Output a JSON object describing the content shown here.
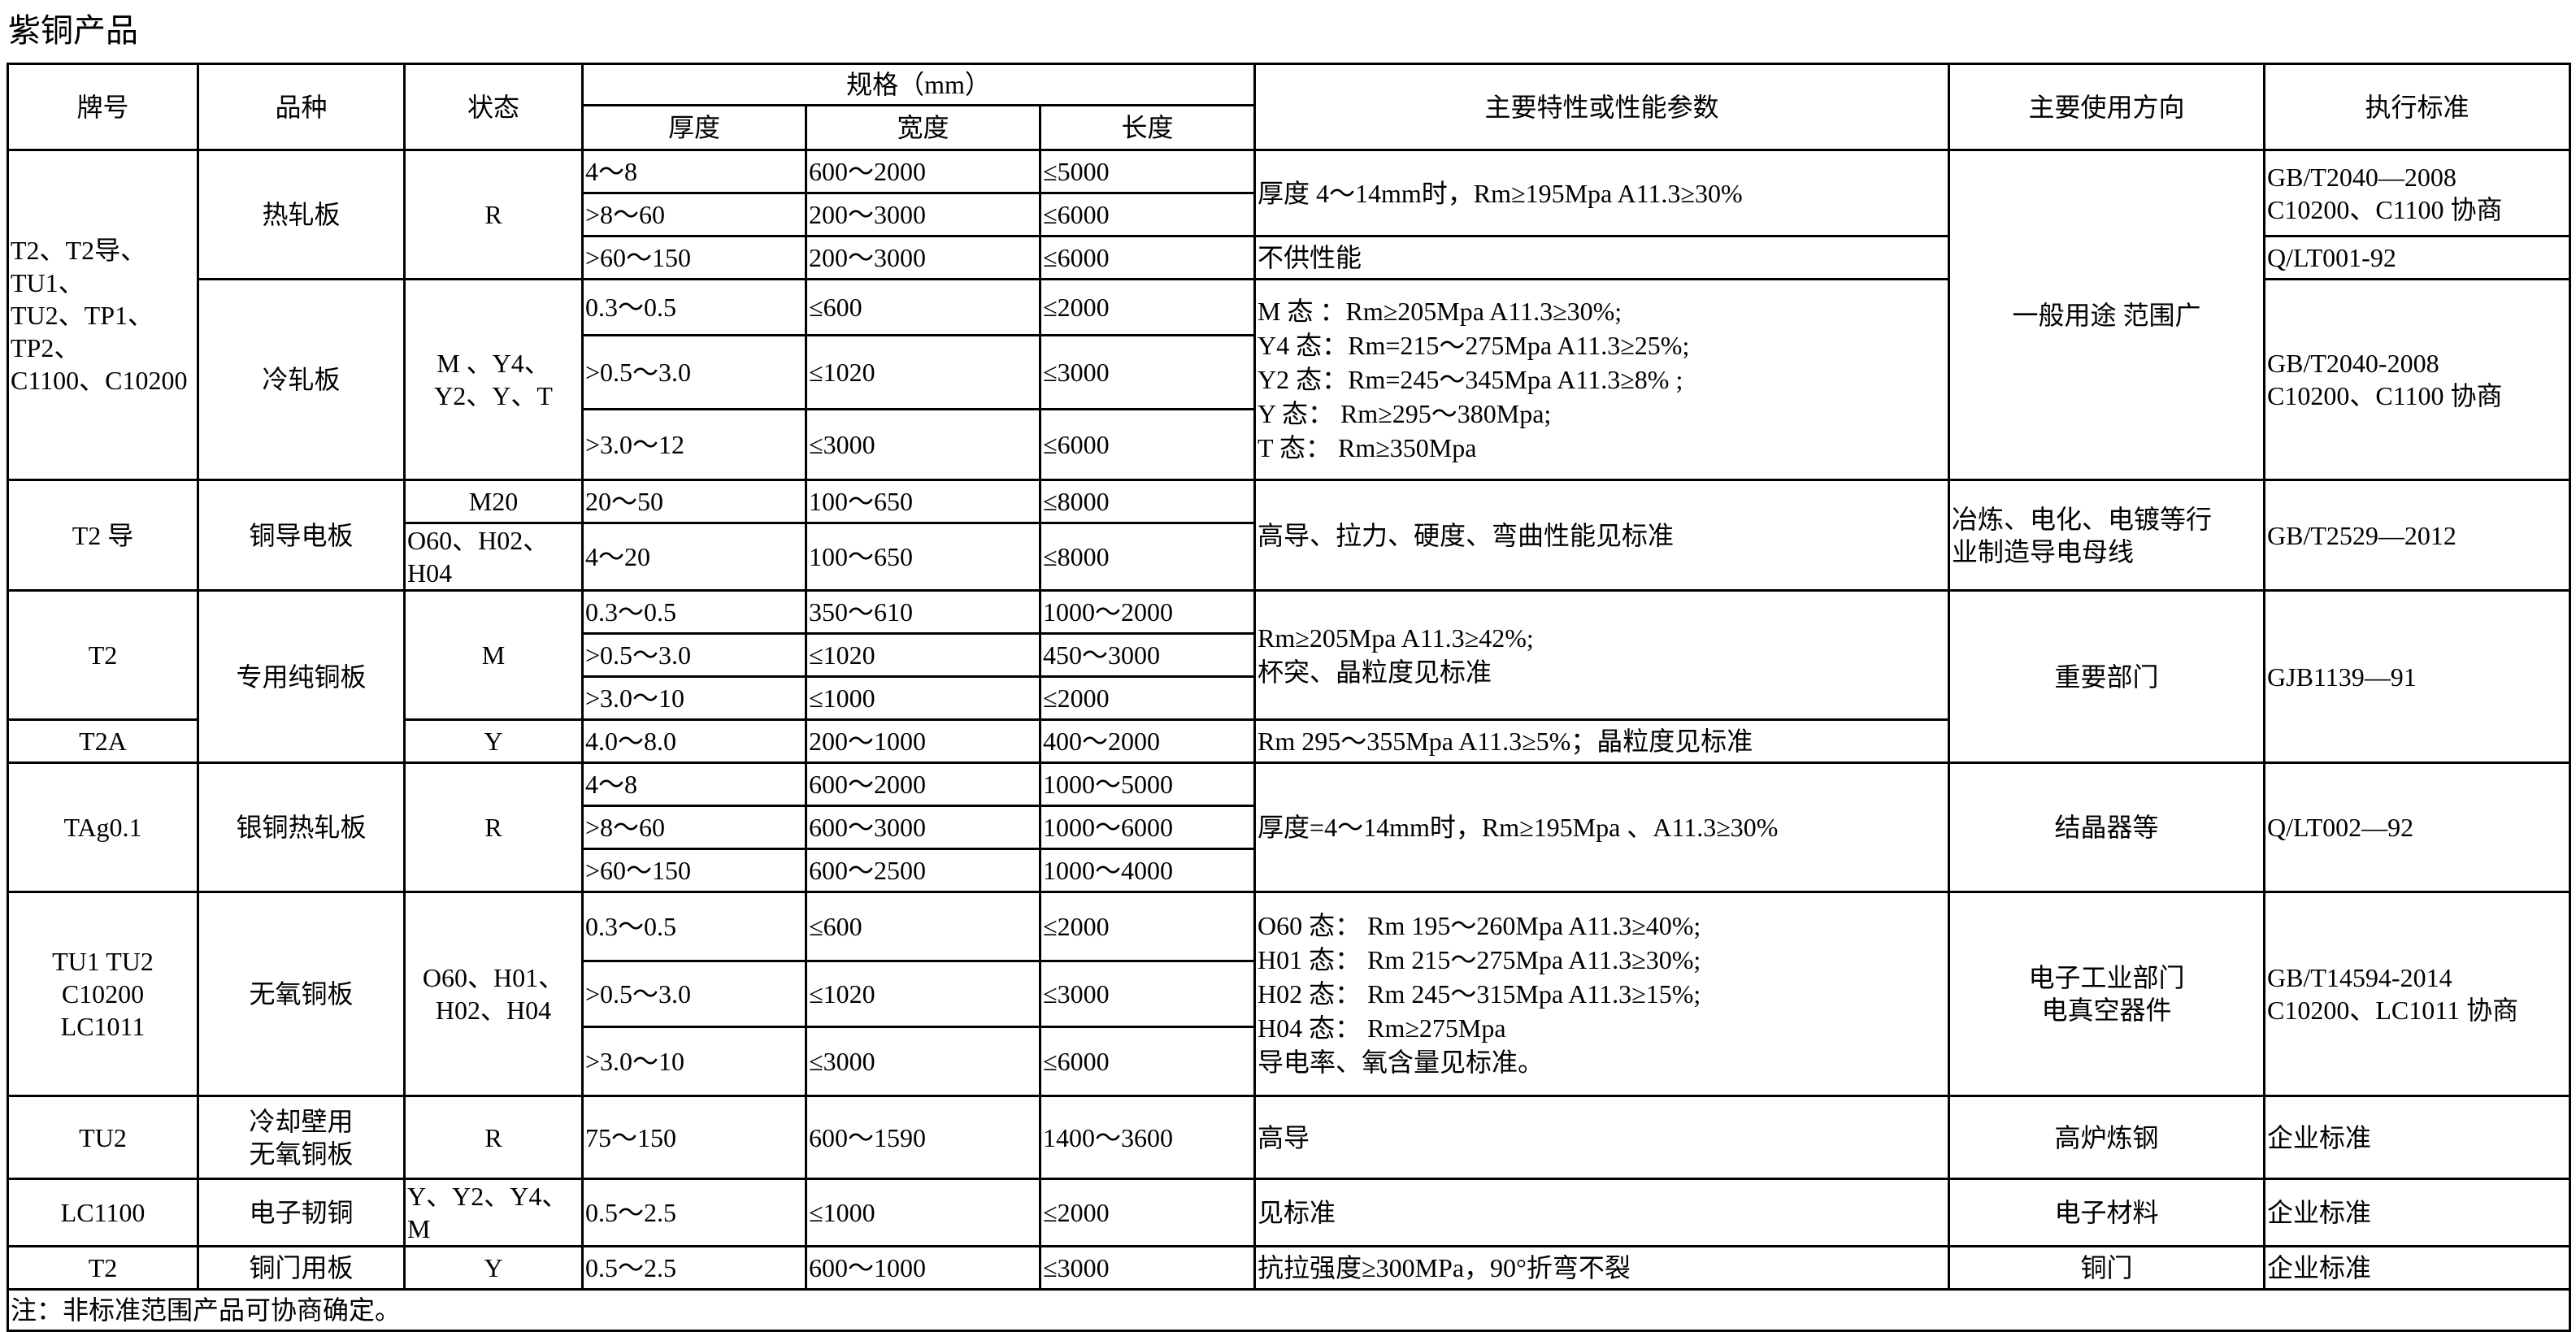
{
  "title": "紫铜产品",
  "header": {
    "grade": "牌号",
    "variety": "品种",
    "temper": "状态",
    "spec": "规格（mm）",
    "thickness": "厚度",
    "width": "宽度",
    "length": "长度",
    "properties": "主要特性或性能参数",
    "usage": "主要使用方向",
    "standard": "执行标准"
  },
  "rows": [
    [
      "T2、T2导、TU1、\nTU2、TP1、TP2、\nC1100、C10200",
      "热轧板",
      "R",
      "4～8",
      "600～2000",
      "≤5000",
      "厚度 4～14mm时，Rm≥195Mpa A11.3≥30%",
      "一般用途 范围广",
      "GB/T2040—2008\nC10200、C1100 协商"
    ],
    [
      ">8～60",
      "200～3000",
      "≤6000"
    ],
    [
      ">60～150",
      "200～3000",
      "≤6000",
      "不供性能",
      "Q/LT001-92"
    ],
    [
      "冷轧板",
      "M 、Y4、\nY2、Y、T",
      "0.3～0.5",
      "≤600",
      "≤2000",
      "M 态 ：Rm≥205Mpa   A11.3≥30%;\nY4 态：Rm=215～275Mpa A11.3≥25%;\nY2 态：Rm=245～345Mpa A11.3≥8% ;\nY 态：  Rm≥295～380Mpa;\nT 态：  Rm≥350Mpa",
      "GB/T2040-2008\nC10200、C1100 协商"
    ],
    [
      ">0.5～3.0",
      "≤1020",
      "≤3000"
    ],
    [
      ">3.0～12",
      "≤3000",
      "≤6000"
    ],
    [
      "T2 导",
      "铜导电板",
      "M20",
      "20～50",
      "100～650",
      "≤8000",
      "高导、拉力、硬度、弯曲性能见标准",
      "冶炼、电化、电镀等行\n业制造导电母线",
      "GB/T2529—2012"
    ],
    [
      "O60、H02、H04",
      "4～20",
      "100～650",
      "≤8000"
    ],
    [
      "T2",
      "专用纯铜板",
      "M",
      "0.3～0.5",
      "350～610",
      "1000～2000",
      "Rm≥205Mpa  A11.3≥42%;\n杯突、晶粒度见标准",
      "重要部门",
      "GJB1139—91"
    ],
    [
      ">0.5～3.0",
      "≤1020",
      "450～3000"
    ],
    [
      ">3.0～10",
      "≤1000",
      "≤2000"
    ],
    [
      "T2A",
      "Y",
      "4.0～8.0",
      "200～1000",
      "400～2000",
      "Rm 295～355Mpa A11.3≥5%；晶粒度见标准"
    ],
    [
      "TAg0.1",
      "银铜热轧板",
      "R",
      "4～8",
      "600～2000",
      "1000～5000",
      "厚度=4～14mm时，Rm≥195Mpa 、A11.3≥30%",
      "结晶器等",
      "Q/LT002—92"
    ],
    [
      ">8～60",
      "600～3000",
      "1000～6000"
    ],
    [
      ">60～150",
      "600～2500",
      "1000～4000"
    ],
    [
      "TU1 TU2\nC10200\nLC1011",
      "无氧铜板",
      "O60、H01、\nH02、H04",
      "0.3～0.5",
      "≤600",
      "≤2000",
      "O60 态：  Rm 195～260Mpa  A11.3≥40%;\nH01 态：  Rm 215～275Mpa  A11.3≥30%;\nH02 态：  Rm 245～315Mpa  A11.3≥15%;\nH04 态：  Rm≥275Mpa\n导电率、氧含量见标准。",
      "电子工业部门\n电真空器件",
      "GB/T14594-2014\nC10200、LC1011 协商"
    ],
    [
      ">0.5～3.0",
      "≤1020",
      "≤3000"
    ],
    [
      ">3.0～10",
      "≤3000",
      "≤6000"
    ],
    [
      "TU2",
      "冷却壁用\n无氧铜板",
      "R",
      "75～150",
      "600～1590",
      "1400～3600",
      "高导",
      "高炉炼钢",
      "企业标准"
    ],
    [
      "LC1100",
      "电子韧铜",
      "Y、Y2、Y4、M",
      "0.5～2.5",
      "≤1000",
      "≤2000",
      "见标准",
      "电子材料",
      "企业标准"
    ],
    [
      "T2",
      "铜门用板",
      "Y",
      "0.5～2.5",
      "600～1000",
      "≤3000",
      "抗拉强度≥300MPa，90°折弯不裂",
      "铜门",
      "企业标准"
    ],
    [
      "注：非标准范围产品可协商确定。"
    ]
  ]
}
